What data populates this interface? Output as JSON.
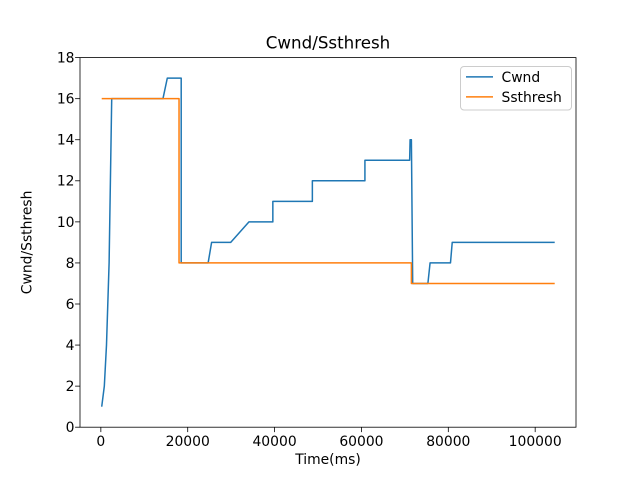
{
  "figure": {
    "background": "#ffffff",
    "axis_color": "#000000"
  },
  "chart_data": {
    "type": "line",
    "title": "Cwnd/Ssthresh",
    "xlabel": "Time(ms)",
    "ylabel": "Cwnd/Ssthresh",
    "xlim": [
      -4800,
      109400
    ],
    "ylim": [
      0,
      18
    ],
    "x_ticks": [
      0,
      20000,
      40000,
      60000,
      80000,
      100000
    ],
    "y_ticks": [
      0,
      2,
      4,
      6,
      8,
      10,
      12,
      14,
      16,
      18
    ],
    "grid": false,
    "legend": {
      "position": "upper right",
      "entries": [
        "Cwnd",
        "Ssthresh"
      ]
    },
    "series": [
      {
        "name": "Cwnd",
        "color": "#1f77b4",
        "points": [
          [
            200,
            1
          ],
          [
            800,
            2
          ],
          [
            1300,
            4
          ],
          [
            1900,
            8
          ],
          [
            2500,
            16
          ],
          [
            14300,
            16
          ],
          [
            15300,
            17
          ],
          [
            18500,
            17
          ],
          [
            18500,
            8
          ],
          [
            24700,
            8
          ],
          [
            25500,
            9
          ],
          [
            29900,
            9
          ],
          [
            34100,
            10
          ],
          [
            39600,
            10
          ],
          [
            39600,
            11
          ],
          [
            48700,
            11
          ],
          [
            48700,
            12
          ],
          [
            60800,
            12
          ],
          [
            60800,
            13
          ],
          [
            71100,
            13
          ],
          [
            71200,
            14
          ],
          [
            71500,
            14
          ],
          [
            71800,
            7
          ],
          [
            75300,
            7
          ],
          [
            75800,
            8
          ],
          [
            80500,
            8
          ],
          [
            80900,
            9
          ],
          [
            104500,
            9
          ]
        ]
      },
      {
        "name": "Ssthresh",
        "color": "#ff7f0e",
        "points": [
          [
            200,
            16
          ],
          [
            18000,
            16
          ],
          [
            18000,
            8
          ],
          [
            71500,
            8
          ],
          [
            71500,
            7
          ],
          [
            104500,
            7
          ]
        ]
      }
    ]
  }
}
